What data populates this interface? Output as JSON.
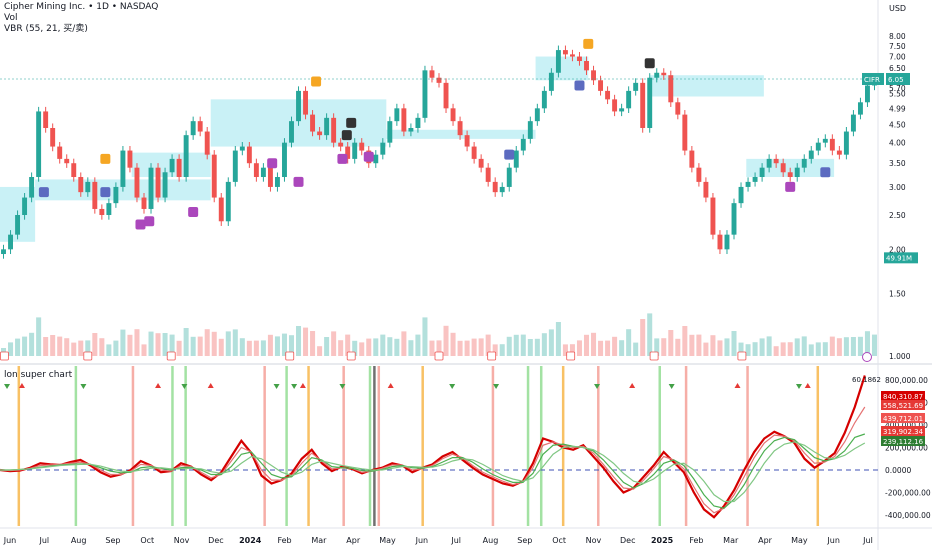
{
  "header": {
    "symbol_line": "Cipher Mining Inc. • 1D • NASDAQ",
    "vol_label": "Vol",
    "indicator_line": "VBR (55, 21, 买/卖)"
  },
  "subpane": {
    "title": "lon super chart"
  },
  "colors": {
    "up": "#26a69a",
    "down": "#ef5350",
    "zone": "#b2ebf2",
    "buy": "#5c6bc0",
    "sell": "#ab47bc",
    "orange": "#f5a623",
    "dark": "#333333",
    "lon_red": "#d50000",
    "lon_green": "#4caf50"
  },
  "chart_data": [
    {
      "type": "line",
      "title": "Cipher Mining Inc. • 1D • NASDAQ",
      "currency_label": "USD",
      "y_ticks": [
        "8.00",
        "7.50",
        "7.00",
        "6.50",
        "5.70",
        "5.50",
        "4.99",
        "4.50",
        "4.00",
        "3.50",
        "3.00",
        "2.50",
        "2.00",
        "1.50",
        "1.000"
      ],
      "ylim": [
        1.0,
        8.0
      ],
      "last_price": {
        "symbol": "CIFR",
        "value": "6.05"
      },
      "volume_label": "49.91M",
      "x_ticks": [
        "Jun",
        "Jul",
        "Aug",
        "Sep",
        "Oct",
        "Nov",
        "Dec",
        "2024",
        "Feb",
        "Mar",
        "Apr",
        "May",
        "Jun",
        "Jul",
        "Aug",
        "Sep",
        "Oct",
        "Nov",
        "Dec",
        "2025",
        "Feb",
        "Mar",
        "Apr",
        "May",
        "Jun",
        "Jul"
      ],
      "series": [
        {
          "values": [
            2.0,
            2.2,
            2.5,
            2.8,
            3.2,
            4.9,
            4.4,
            3.9,
            3.6,
            3.5,
            3.2,
            2.9,
            3.1,
            2.6,
            2.5,
            2.7,
            3.0,
            3.8,
            3.4,
            2.8,
            2.6,
            3.4,
            2.8,
            3.3,
            3.6,
            3.2,
            4.2,
            4.6,
            4.3,
            3.7,
            2.8,
            2.4,
            3.1,
            3.8,
            3.9,
            3.5,
            3.2,
            3.4,
            3.0,
            3.2,
            4.0,
            4.6,
            5.6,
            4.8,
            4.3,
            4.2,
            4.7,
            4.0,
            3.9,
            3.6,
            4.0,
            3.8,
            3.5,
            3.7,
            4.0,
            4.6,
            5.0,
            4.3,
            4.4,
            4.7,
            6.4,
            6.1,
            5.9,
            5.0,
            4.6,
            4.2,
            3.9,
            3.6,
            3.4,
            3.1,
            2.9,
            3.0,
            3.4,
            3.8,
            4.1,
            4.6,
            5.0,
            5.6,
            6.3,
            7.3,
            7.1,
            7.0,
            6.8,
            6.4,
            6.0,
            5.6,
            5.3,
            4.9,
            5.0,
            5.6,
            5.9,
            4.4,
            6.1,
            6.3,
            6.2,
            5.2,
            4.8,
            3.8,
            3.4,
            3.1,
            2.8,
            2.2,
            2.0,
            2.2,
            2.7,
            3.0,
            3.1,
            3.2,
            3.4,
            3.6,
            3.5,
            3.3,
            3.2,
            3.4,
            3.6,
            3.8,
            4.0,
            4.1,
            3.8,
            3.7,
            4.3,
            4.8,
            5.2,
            5.8,
            6.1
          ]
        }
      ]
    },
    {
      "type": "line",
      "title": "lon super chart",
      "y_ticks": [
        "800,000.00",
        "600,000.00",
        "400,000.00",
        "200,000.00",
        "0.0000",
        "-200,000.00",
        "-400,000.00"
      ],
      "ylim": [
        -450000,
        850000
      ],
      "value_labels": [
        "840,310.87",
        "558,521.69",
        "439,712.01",
        "319,902.34",
        "239,112.16"
      ],
      "top_label": "60.1862",
      "series": [
        {
          "values": [
            0,
            -10000,
            -5000,
            20000,
            60000,
            50000,
            45000,
            70000,
            90000,
            40000,
            -20000,
            -60000,
            -40000,
            0,
            80000,
            40000,
            -20000,
            -10000,
            60000,
            30000,
            -40000,
            -90000,
            -20000,
            120000,
            260000,
            150000,
            -50000,
            -120000,
            -90000,
            -30000,
            100000,
            180000,
            60000,
            -10000,
            30000,
            10000,
            -30000,
            0,
            20000,
            60000,
            40000,
            -20000,
            20000,
            50000,
            120000,
            160000,
            90000,
            20000,
            -40000,
            -80000,
            -120000,
            -140000,
            -100000,
            60000,
            280000,
            250000,
            200000,
            180000,
            220000,
            120000,
            20000,
            -100000,
            -200000,
            -160000,
            -60000,
            40000,
            160000,
            70000,
            -20000,
            -200000,
            -350000,
            -420000,
            -320000,
            -180000,
            0,
            160000,
            280000,
            340000,
            300000,
            240000,
            100000,
            20000,
            80000,
            150000,
            330000,
            560000,
            840000
          ]
        },
        {
          "values": [
            0,
            -5000,
            0,
            15000,
            40000,
            45000,
            50000,
            60000,
            70000,
            50000,
            0,
            -40000,
            -40000,
            -10000,
            50000,
            40000,
            0,
            -10000,
            40000,
            30000,
            -20000,
            -70000,
            -40000,
            80000,
            200000,
            160000,
            0,
            -90000,
            -90000,
            -50000,
            60000,
            150000,
            80000,
            10000,
            20000,
            15000,
            -20000,
            -10000,
            15000,
            45000,
            45000,
            0,
            10000,
            40000,
            100000,
            140000,
            110000,
            40000,
            -20000,
            -60000,
            -100000,
            -130000,
            -110000,
            20000,
            220000,
            250000,
            220000,
            200000,
            210000,
            150000,
            50000,
            -60000,
            -160000,
            -170000,
            -90000,
            10000,
            120000,
            90000,
            10000,
            -150000,
            -300000,
            -380000,
            -340000,
            -220000,
            -60000,
            110000,
            240000,
            310000,
            300000,
            260000,
            150000,
            60000,
            70000,
            120000,
            250000,
            420000,
            560000
          ]
        },
        {
          "values": [
            0,
            0,
            5000,
            10000,
            25000,
            35000,
            45000,
            50000,
            55000,
            50000,
            20000,
            -10000,
            -25000,
            -20000,
            20000,
            30000,
            15000,
            0,
            20000,
            25000,
            0,
            -40000,
            -40000,
            30000,
            140000,
            160000,
            60000,
            -40000,
            -70000,
            -60000,
            20000,
            110000,
            90000,
            30000,
            20000,
            15000,
            -5000,
            -10000,
            5000,
            30000,
            40000,
            20000,
            15000,
            30000,
            70000,
            110000,
            110000,
            70000,
            10000,
            -40000,
            -80000,
            -110000,
            -110000,
            -30000,
            140000,
            220000,
            230000,
            210000,
            200000,
            170000,
            90000,
            -10000,
            -110000,
            -160000,
            -120000,
            -40000,
            60000,
            90000,
            40000,
            -80000,
            -220000,
            -320000,
            -340000,
            -260000,
            -130000,
            30000,
            170000,
            260000,
            290000,
            270000,
            190000,
            110000,
            80000,
            100000,
            170000,
            290000,
            320000
          ]
        },
        {
          "values": [
            0,
            0,
            5000,
            10000,
            20000,
            30000,
            40000,
            45000,
            50000,
            50000,
            35000,
            10000,
            -10000,
            -15000,
            0,
            15000,
            20000,
            10000,
            10000,
            15000,
            10000,
            -15000,
            -30000,
            -10000,
            60000,
            120000,
            100000,
            40000,
            -20000,
            -50000,
            -20000,
            50000,
            80000,
            60000,
            40000,
            25000,
            10000,
            0,
            0,
            15000,
            30000,
            30000,
            25000,
            25000,
            45000,
            80000,
            100000,
            90000,
            50000,
            0,
            -50000,
            -80000,
            -100000,
            -70000,
            30000,
            140000,
            200000,
            210000,
            200000,
            180000,
            130000,
            60000,
            -30000,
            -100000,
            -120000,
            -80000,
            -10000,
            50000,
            60000,
            0,
            -100000,
            -220000,
            -280000,
            -280000,
            -200000,
            -80000,
            60000,
            170000,
            230000,
            250000,
            220000,
            160000,
            110000,
            100000,
            130000,
            190000,
            240000
          ]
        }
      ]
    }
  ],
  "icons": [
    "buy-signal-icon",
    "sell-signal-icon",
    "earnings-icon",
    "lightning-icon",
    "triangle-up-icon",
    "triangle-down-icon"
  ]
}
